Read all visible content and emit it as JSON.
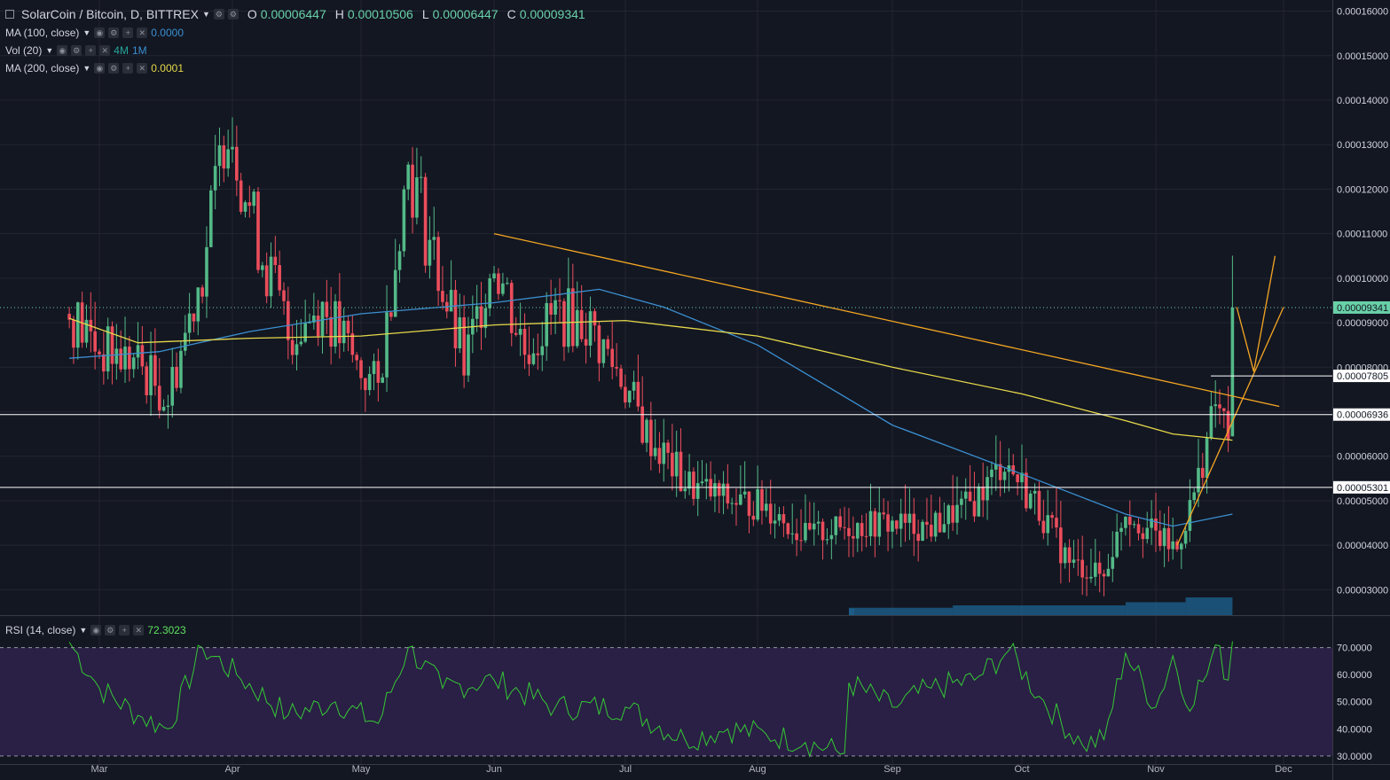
{
  "header": {
    "title": "SolarCoin / Bitcoin, D, BITTREX",
    "ohlc": [
      {
        "label": "O",
        "value": "0.00006447"
      },
      {
        "label": "H",
        "value": "0.00010506"
      },
      {
        "label": "L",
        "value": "0.00006447"
      },
      {
        "label": "C",
        "value": "0.00009341"
      }
    ]
  },
  "indicators": {
    "ma100": {
      "name": "MA (100, close)",
      "value": "0.0000"
    },
    "vol": {
      "name": "Vol (20)",
      "value_a": "4M",
      "value_b": "1M"
    },
    "ma200": {
      "name": "MA (200, close)",
      "value": "0.0001"
    },
    "rsi": {
      "name": "RSI (14, close)",
      "value": "72.3023"
    }
  },
  "colors": {
    "background": "#131722",
    "grid": "#232632",
    "up": "#53b987",
    "down": "#eb4d5c",
    "ma100": "#3b8fd1",
    "ma200": "#e6d84a",
    "trendline": "#f5a623",
    "rsi_line": "#34c934",
    "rsi_band": "#2a1f45",
    "price_tag": "#69d0a8"
  },
  "chart_data": [
    {
      "type": "candlestick",
      "title": "SolarCoin / Bitcoin, D, BITTREX",
      "x_ticks": [
        "Mar",
        "Apr",
        "May",
        "Jun",
        "Jul",
        "Aug",
        "Sep",
        "Oct",
        "Nov",
        "Dec"
      ],
      "y_ticks": [
        "0.00003000",
        "0.00004000",
        "0.00005000",
        "0.00006000",
        "0.00007000",
        "0.00008000",
        "0.00009000",
        "0.00010000",
        "0.00011000",
        "0.00012000",
        "0.00013000",
        "0.00014000",
        "0.00015000",
        "0.00016000"
      ],
      "ylim": [
        2.43e-05,
        0.0001625
      ],
      "grid": true,
      "last_price": "0.00009341",
      "horizontal_levels": [
        "0.00007805",
        "0.00006936",
        "0.00005301"
      ],
      "close_series": [
        {
          "date": "Feb 22",
          "close": 9.2e-05
        },
        {
          "date": "Mar 1",
          "close": 8.4e-05
        },
        {
          "date": "Mar 10",
          "close": 8.1e-05
        },
        {
          "date": "Mar 17",
          "close": 7.3e-05
        },
        {
          "date": "Mar 25",
          "close": 0.000102
        },
        {
          "date": "Mar 31",
          "close": 0.000138
        },
        {
          "date": "Apr 6",
          "close": 0.000112
        },
        {
          "date": "Apr 14",
          "close": 8.7e-05
        },
        {
          "date": "Apr 22",
          "close": 9.4e-05
        },
        {
          "date": "Apr 30",
          "close": 8e-05
        },
        {
          "date": "May 5",
          "close": 7.5e-05
        },
        {
          "date": "May 12",
          "close": 0.000126
        },
        {
          "date": "May 18",
          "close": 0.000105
        },
        {
          "date": "May 25",
          "close": 8e-05
        },
        {
          "date": "Jun 1",
          "close": 0.000105
        },
        {
          "date": "Jun 8",
          "close": 8.4e-05
        },
        {
          "date": "Jun 15",
          "close": 9.2e-05
        },
        {
          "date": "Jun 22",
          "close": 9e-05
        },
        {
          "date": "Jun 30",
          "close": 7.8e-05
        },
        {
          "date": "Jul 6",
          "close": 6.5e-05
        },
        {
          "date": "Jul 15",
          "close": 5.4e-05
        },
        {
          "date": "Jul 25",
          "close": 5e-05
        },
        {
          "date": "Aug 3",
          "close": 4.9e-05
        },
        {
          "date": "Aug 12",
          "close": 4.2e-05
        },
        {
          "date": "Aug 21",
          "close": 4.4e-05
        },
        {
          "date": "Aug 30",
          "close": 4.5e-05
        },
        {
          "date": "Sep 10",
          "close": 4.4e-05
        },
        {
          "date": "Sep 20",
          "close": 5e-05
        },
        {
          "date": "Sep 27",
          "close": 5.9e-05
        },
        {
          "date": "Oct 5",
          "close": 4.8e-05
        },
        {
          "date": "Oct 12",
          "close": 3.6e-05
        },
        {
          "date": "Oct 20",
          "close": 3.3e-05
        },
        {
          "date": "Oct 25",
          "close": 4.8e-05
        },
        {
          "date": "Nov 1",
          "close": 4.2e-05
        },
        {
          "date": "Nov 6",
          "close": 3.9e-05
        },
        {
          "date": "Nov 11",
          "close": 5.5e-05
        },
        {
          "date": "Nov 15",
          "close": 7.2e-05
        },
        {
          "date": "Nov 18",
          "close": 6.45e-05
        },
        {
          "date": "Nov 19",
          "close": 9.34e-05
        }
      ],
      "series": [
        {
          "name": "MA (100, close)",
          "points": [
            {
              "date": "Feb 22",
              "value": 8.2e-05
            },
            {
              "date": "Mar 15",
              "value": 8.35e-05
            },
            {
              "date": "Apr 5",
              "value": 8.8e-05
            },
            {
              "date": "May 1",
              "value": 9.2e-05
            },
            {
              "date": "Jun 1",
              "value": 9.45e-05
            },
            {
              "date": "Jun 25",
              "value": 9.75e-05
            },
            {
              "date": "Jul 10",
              "value": 9.35e-05
            },
            {
              "date": "Aug 1",
              "value": 8.5e-05
            },
            {
              "date": "Sep 1",
              "value": 6.7e-05
            },
            {
              "date": "Oct 1",
              "value": 5.6e-05
            },
            {
              "date": "Oct 25",
              "value": 4.7e-05
            },
            {
              "date": "Nov 5",
              "value": 4.43e-05
            },
            {
              "date": "Nov 19",
              "value": 4.7e-05
            }
          ]
        },
        {
          "name": "MA (200, close)",
          "points": [
            {
              "date": "Feb 22",
              "value": 9.1e-05
            },
            {
              "date": "Mar 10",
              "value": 8.55e-05
            },
            {
              "date": "Apr 5",
              "value": 8.65e-05
            },
            {
              "date": "May 1",
              "value": 8.7e-05
            },
            {
              "date": "Jun 1",
              "value": 8.95e-05
            },
            {
              "date": "Jul 1",
              "value": 9.05e-05
            },
            {
              "date": "Aug 1",
              "value": 8.7e-05
            },
            {
              "date": "Sep 1",
              "value": 8e-05
            },
            {
              "date": "Oct 1",
              "value": 7.4e-05
            },
            {
              "date": "Oct 25",
              "value": 6.8e-05
            },
            {
              "date": "Nov 5",
              "value": 6.5e-05
            },
            {
              "date": "Nov 19",
              "value": 6.36e-05
            }
          ]
        }
      ],
      "drawings": [
        {
          "kind": "trendline",
          "points": [
            {
              "date": "Jun 1",
              "value": 0.00011
            },
            {
              "date": "Nov 30",
              "value": 7.12e-05
            }
          ]
        },
        {
          "kind": "trendline",
          "points": [
            {
              "date": "Nov 6",
              "value": 4e-05
            },
            {
              "date": "Dec 1",
              "value": 9.35e-05
            }
          ]
        },
        {
          "kind": "projection",
          "points": [
            {
              "date": "Nov 20",
              "value": 9.35e-05
            },
            {
              "date": "Nov 24",
              "value": 7.9e-05
            },
            {
              "date": "Nov 29",
              "value": 0.000105
            }
          ]
        }
      ]
    },
    {
      "type": "line",
      "title": "RSI (14, close)",
      "y_ticks": [
        "30.0000",
        "40.0000",
        "50.0000",
        "60.0000",
        "70.0000"
      ],
      "ylim": [
        27,
        81
      ],
      "band": [
        30,
        70
      ],
      "series": [
        {
          "name": "RSI (14, close)",
          "points": [
            {
              "date": "Feb 22",
              "value": 72
            },
            {
              "date": "Mar 1",
              "value": 55
            },
            {
              "date": "Mar 10",
              "value": 45
            },
            {
              "date": "Mar 17",
              "value": 40
            },
            {
              "date": "Mar 25",
              "value": 70
            },
            {
              "date": "Apr 2",
              "value": 60
            },
            {
              "date": "Apr 14",
              "value": 45
            },
            {
              "date": "Apr 25",
              "value": 50
            },
            {
              "date": "May 5",
              "value": 42
            },
            {
              "date": "May 12",
              "value": 70
            },
            {
              "date": "May 20",
              "value": 55
            },
            {
              "date": "Jun 1",
              "value": 58
            },
            {
              "date": "Jun 15",
              "value": 48
            },
            {
              "date": "Jul 1",
              "value": 48
            },
            {
              "date": "Jul 15",
              "value": 36
            },
            {
              "date": "Jul 25",
              "value": 40
            },
            {
              "date": "Aug 3",
              "value": 38
            },
            {
              "date": "Aug 12",
              "value": 35
            },
            {
              "date": "Aug 21",
              "value": 31
            },
            {
              "date": "Aug 22",
              "value": 57
            },
            {
              "date": "Sep 1",
              "value": 48
            },
            {
              "date": "Sep 10",
              "value": 55
            },
            {
              "date": "Sep 20",
              "value": 58
            },
            {
              "date": "Sep 28",
              "value": 69
            },
            {
              "date": "Oct 5",
              "value": 52
            },
            {
              "date": "Oct 15",
              "value": 34
            },
            {
              "date": "Oct 20",
              "value": 36
            },
            {
              "date": "Oct 25",
              "value": 68
            },
            {
              "date": "Nov 1",
              "value": 48
            },
            {
              "date": "Nov 5",
              "value": 67
            },
            {
              "date": "Nov 8",
              "value": 49
            },
            {
              "date": "Nov 13",
              "value": 60
            },
            {
              "date": "Nov 15",
              "value": 71
            },
            {
              "date": "Nov 18",
              "value": 58
            },
            {
              "date": "Nov 19",
              "value": 72.3
            }
          ]
        }
      ]
    },
    {
      "type": "bar",
      "title": "Vol (20)",
      "note_source": "volume histogram along bottom of price pane",
      "values": [
        {
          "date": "Aug 22",
          "value": 0.3
        },
        {
          "date": "Sep 15",
          "value": 0.35
        },
        {
          "date": "Oct 25",
          "value": 0.5
        },
        {
          "date": "Nov 8",
          "value": 0.7
        },
        {
          "date": "Nov 19",
          "value": 1.0
        }
      ]
    }
  ]
}
